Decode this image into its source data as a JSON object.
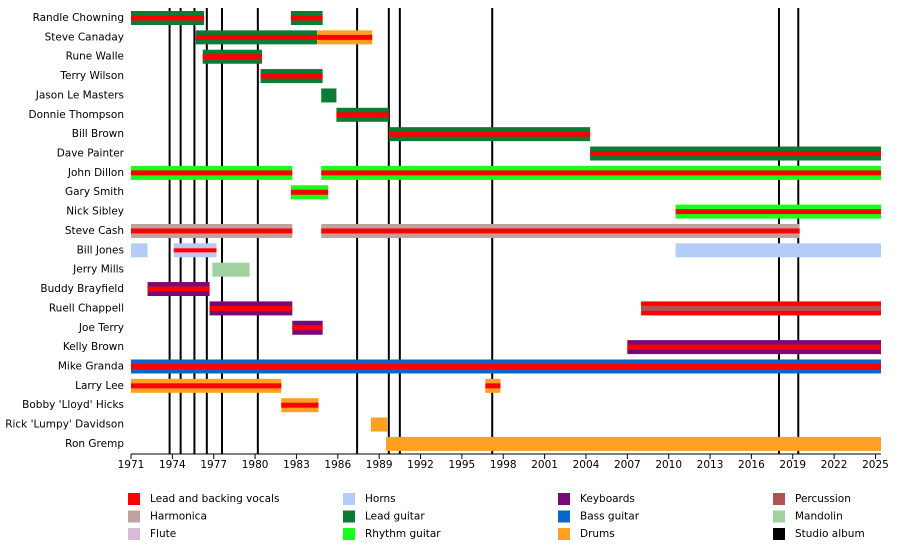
{
  "chart_data": {
    "type": "timeline",
    "xlim": [
      1971,
      2025.4
    ],
    "xticks": [
      1971,
      1974,
      1977,
      1980,
      1983,
      1986,
      1989,
      1992,
      1995,
      1998,
      2001,
      2004,
      2007,
      2010,
      2013,
      2016,
      2019,
      2022,
      2025
    ],
    "roles": [
      {
        "name": "Lead and backing vocals",
        "color": "#ff0000"
      },
      {
        "name": "Harmonica",
        "color": "#bca39f"
      },
      {
        "name": "Flute",
        "color": "#d8bcd8"
      },
      {
        "name": "Horns",
        "color": "#b4ccf8"
      },
      {
        "name": "Lead guitar",
        "color": "#0d7a35"
      },
      {
        "name": "Rhythm guitar",
        "color": "#1aff1a"
      },
      {
        "name": "Keyboards",
        "color": "#780a78"
      },
      {
        "name": "Bass guitar",
        "color": "#0a66c8"
      },
      {
        "name": "Drums",
        "color": "#ffa022"
      },
      {
        "name": "Percussion",
        "color": "#b05252"
      },
      {
        "name": "Mandolin",
        "color": "#a0d2a0"
      },
      {
        "name": "Studio album",
        "color": "#000000"
      }
    ],
    "studio_albums": [
      1973.8,
      1974.6,
      1975.6,
      1976.5,
      1977.6,
      1980.2,
      1987.4,
      1989.7,
      1990.5,
      1997.2,
      2018,
      2019.4
    ],
    "members": [
      {
        "name": "Randle Chowning",
        "periods": [
          {
            "start": 1971,
            "end": 1976.3,
            "roles": [
              "Lead guitar",
              "Lead and backing vocals"
            ]
          },
          {
            "start": 1982.6,
            "end": 1984.9,
            "roles": [
              "Lead guitar",
              "Lead and backing vocals"
            ]
          }
        ]
      },
      {
        "name": "Steve Canaday",
        "periods": [
          {
            "start": 1975.7,
            "end": 1984.5,
            "roles": [
              "Lead guitar",
              "Lead and backing vocals"
            ]
          },
          {
            "start": 1984.5,
            "end": 1988.5,
            "roles": [
              "Drums",
              "Lead and backing vocals"
            ]
          }
        ]
      },
      {
        "name": "Rune Walle",
        "periods": [
          {
            "start": 1976.2,
            "end": 1980.5,
            "roles": [
              "Lead guitar",
              "Lead and backing vocals"
            ]
          }
        ]
      },
      {
        "name": "Terry Wilson",
        "periods": [
          {
            "start": 1980.4,
            "end": 1984.9,
            "roles": [
              "Lead guitar",
              "Lead and backing vocals"
            ]
          }
        ]
      },
      {
        "name": "Jason Le Masters",
        "periods": [
          {
            "start": 1984.8,
            "end": 1985.9,
            "roles": [
              "Lead guitar"
            ]
          }
        ]
      },
      {
        "name": "Donnie Thompson",
        "periods": [
          {
            "start": 1985.9,
            "end": 1989.7,
            "roles": [
              "Lead guitar",
              "Lead and backing vocals"
            ]
          }
        ]
      },
      {
        "name": "Bill Brown",
        "periods": [
          {
            "start": 1989.7,
            "end": 2004.3,
            "roles": [
              "Lead guitar",
              "Lead and backing vocals"
            ]
          }
        ]
      },
      {
        "name": "Dave Painter",
        "periods": [
          {
            "start": 2004.3,
            "end": 2025.4,
            "roles": [
              "Lead guitar",
              "Lead and backing vocals"
            ]
          }
        ]
      },
      {
        "name": "John Dillon",
        "periods": [
          {
            "start": 1971,
            "end": 1982.7,
            "roles": [
              "Rhythm guitar",
              "Lead and backing vocals"
            ]
          },
          {
            "start": 1984.8,
            "end": 2025.4,
            "roles": [
              "Rhythm guitar",
              "Lead and backing vocals"
            ]
          }
        ]
      },
      {
        "name": "Gary Smith",
        "periods": [
          {
            "start": 1982.6,
            "end": 1985.3,
            "roles": [
              "Rhythm guitar",
              "Lead and backing vocals"
            ]
          }
        ]
      },
      {
        "name": "Nick Sibley",
        "periods": [
          {
            "start": 2010.5,
            "end": 2025.4,
            "roles": [
              "Rhythm guitar",
              "Lead and backing vocals"
            ]
          }
        ]
      },
      {
        "name": "Steve Cash",
        "periods": [
          {
            "start": 1971,
            "end": 1982.7,
            "roles": [
              "Harmonica",
              "Lead and backing vocals"
            ]
          },
          {
            "start": 1984.8,
            "end": 2019.5,
            "roles": [
              "Harmonica",
              "Lead and backing vocals"
            ]
          }
        ]
      },
      {
        "name": "Bill Jones",
        "periods": [
          {
            "start": 1971,
            "end": 1972.2,
            "roles": [
              "Horns"
            ]
          },
          {
            "start": 1974.1,
            "end": 1977.2,
            "roles": [
              "Horns",
              "Lead and backing vocals",
              "Flute"
            ]
          },
          {
            "start": 2010.5,
            "end": 2025.4,
            "roles": [
              "Horns"
            ]
          }
        ]
      },
      {
        "name": "Jerry Mills",
        "periods": [
          {
            "start": 1976.9,
            "end": 1979.6,
            "roles": [
              "Mandolin"
            ]
          }
        ]
      },
      {
        "name": "Buddy Brayfield",
        "periods": [
          {
            "start": 1972.2,
            "end": 1976.7,
            "roles": [
              "Keyboards",
              "Lead and backing vocals"
            ]
          }
        ]
      },
      {
        "name": "Ruell Chappell",
        "periods": [
          {
            "start": 1976.7,
            "end": 1982.7,
            "roles": [
              "Keyboards",
              "Lead and backing vocals"
            ]
          },
          {
            "start": 2008,
            "end": 2025.4,
            "roles": [
              "Lead and backing vocals",
              "Percussion"
            ]
          }
        ]
      },
      {
        "name": "Joe Terry",
        "periods": [
          {
            "start": 1982.7,
            "end": 1984.9,
            "roles": [
              "Keyboards",
              "Lead and backing vocals"
            ]
          }
        ]
      },
      {
        "name": "Kelly Brown",
        "periods": [
          {
            "start": 2007,
            "end": 2025.4,
            "roles": [
              "Keyboards",
              "Lead and backing vocals"
            ]
          }
        ]
      },
      {
        "name": "Mike Granda",
        "periods": [
          {
            "start": 1971,
            "end": 2025.4,
            "roles": [
              "Bass guitar",
              "Lead and backing vocals"
            ]
          }
        ]
      },
      {
        "name": "Larry Lee",
        "periods": [
          {
            "start": 1971,
            "end": 1981.9,
            "roles": [
              "Drums",
              "Lead and backing vocals"
            ]
          },
          {
            "start": 1996.7,
            "end": 1997.8,
            "roles": [
              "Drums",
              "Lead and backing vocals"
            ]
          }
        ]
      },
      {
        "name": "Bobby 'Lloyd' Hicks",
        "periods": [
          {
            "start": 1981.9,
            "end": 1984.6,
            "roles": [
              "Drums",
              "Lead and backing vocals"
            ]
          }
        ]
      },
      {
        "name": "Rick 'Lumpy' Davidson",
        "periods": [
          {
            "start": 1988.4,
            "end": 1989.6,
            "roles": [
              "Drums"
            ]
          }
        ]
      },
      {
        "name": "Ron Gremp",
        "periods": [
          {
            "start": 1989.5,
            "end": 2025.4,
            "roles": [
              "Drums"
            ]
          }
        ]
      }
    ]
  }
}
